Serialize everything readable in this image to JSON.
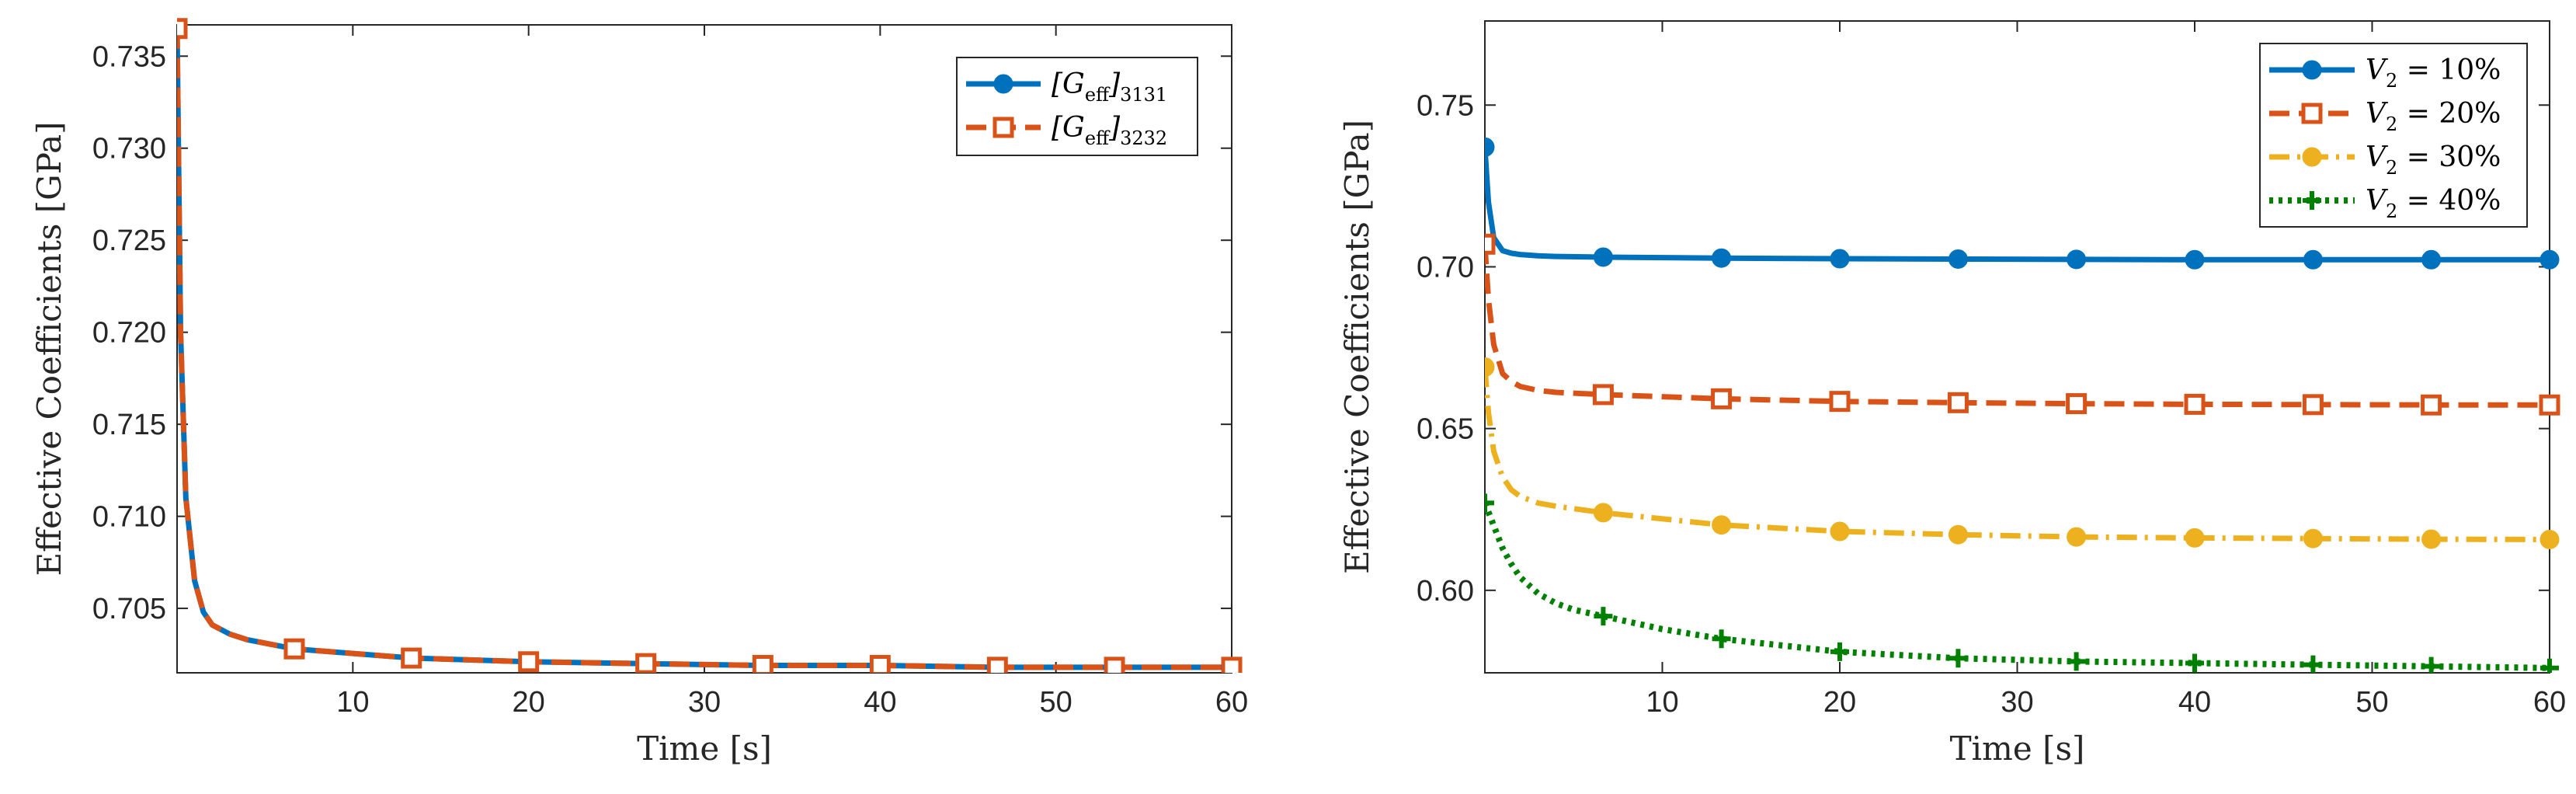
{
  "chart_data": [
    {
      "type": "line",
      "xlabel": "Time [s]",
      "ylabel": "Effective Coefficients [GPa]",
      "xlim": [
        0,
        60
      ],
      "ylim": [
        0.7015,
        0.7367
      ],
      "xticks": [
        10,
        20,
        30,
        40,
        50,
        60
      ],
      "xtick_labels": [
        "10",
        "20",
        "30",
        "40",
        "50",
        "60"
      ],
      "yticks": [
        0.705,
        0.71,
        0.715,
        0.72,
        0.725,
        0.73,
        0.735
      ],
      "ytick_labels": [
        "0.705",
        "0.710",
        "0.715",
        "0.720",
        "0.725",
        "0.730",
        "0.735"
      ],
      "grid": false,
      "legend_position": "top-right",
      "series": [
        {
          "name": "[G_eff]3131",
          "legend_main": "[G",
          "legend_sub1": "eff",
          "legend_close": "]",
          "legend_sub2": "3131",
          "color": "#0072BD",
          "line_style": "solid",
          "marker": "circle",
          "x": [
            0,
            0.2,
            0.5,
            1,
            1.5,
            2,
            3,
            4,
            6.67,
            13.33,
            20,
            26.67,
            33.33,
            40,
            46.67,
            53.33,
            60
          ],
          "y": [
            0.7365,
            0.72,
            0.711,
            0.7065,
            0.7048,
            0.7041,
            0.7036,
            0.7033,
            0.7028,
            0.7023,
            0.7021,
            0.702,
            0.7019,
            0.7019,
            0.7018,
            0.7018,
            0.7018
          ],
          "marker_x": [
            0,
            6.67,
            13.33,
            20,
            26.67,
            33.33,
            40,
            46.67,
            53.33,
            60
          ]
        },
        {
          "name": "[G_eff]3232",
          "legend_main": "[G",
          "legend_sub1": "eff",
          "legend_close": "]",
          "legend_sub2": "3232",
          "color": "#D95319",
          "line_style": "dashed",
          "marker": "square",
          "x": [
            0,
            0.2,
            0.5,
            1,
            1.5,
            2,
            3,
            4,
            6.67,
            13.33,
            20,
            26.67,
            33.33,
            40,
            46.67,
            53.33,
            60
          ],
          "y": [
            0.7365,
            0.72,
            0.711,
            0.7065,
            0.7048,
            0.7041,
            0.7036,
            0.7033,
            0.7028,
            0.7023,
            0.7021,
            0.702,
            0.7019,
            0.7019,
            0.7018,
            0.7018,
            0.7018
          ],
          "marker_x": [
            0,
            6.67,
            13.33,
            20,
            26.67,
            33.33,
            40,
            46.67,
            53.33,
            60
          ]
        }
      ]
    },
    {
      "type": "line",
      "xlabel": "Time [s]",
      "ylabel": "Effective Coefficients [GPa]",
      "xlim": [
        0,
        60
      ],
      "ylim": [
        0.5745,
        0.776
      ],
      "xticks": [
        10,
        20,
        30,
        40,
        50,
        60
      ],
      "xtick_labels": [
        "10",
        "20",
        "30",
        "40",
        "50",
        "60"
      ],
      "yticks": [
        0.6,
        0.65,
        0.7,
        0.75
      ],
      "ytick_labels": [
        "0.60",
        "0.65",
        "0.70",
        "0.75"
      ],
      "grid": false,
      "legend_position": "top-right",
      "series": [
        {
          "name": "V2 = 10%",
          "legend_main": "V",
          "legend_sub1": "2",
          "legend_rest": " = 10%",
          "color": "#0072BD",
          "line_style": "solid",
          "marker": "circle",
          "x": [
            0,
            0.2,
            0.5,
            1,
            1.5,
            2,
            3,
            4,
            6.67,
            13.33,
            20,
            26.67,
            33.33,
            40,
            46.67,
            53.33,
            60
          ],
          "y": [
            0.737,
            0.72,
            0.709,
            0.705,
            0.7042,
            0.7038,
            0.7034,
            0.7032,
            0.703,
            0.7027,
            0.7025,
            0.7024,
            0.7023,
            0.7022,
            0.7022,
            0.7022,
            0.7022
          ],
          "marker_x": [
            0,
            6.67,
            13.33,
            20,
            26.67,
            33.33,
            40,
            46.67,
            53.33,
            60
          ]
        },
        {
          "name": "V2 = 20%",
          "legend_main": "V",
          "legend_sub1": "2",
          "legend_rest": " = 20%",
          "color": "#D95319",
          "line_style": "dashed",
          "marker": "square",
          "x": [
            0,
            0.2,
            0.5,
            1,
            1.5,
            2,
            3,
            4,
            6.67,
            13.33,
            20,
            26.67,
            33.33,
            40,
            46.67,
            53.33,
            60
          ],
          "y": [
            0.707,
            0.69,
            0.676,
            0.667,
            0.6645,
            0.663,
            0.6618,
            0.6612,
            0.6605,
            0.6592,
            0.6584,
            0.658,
            0.6577,
            0.6575,
            0.6574,
            0.6573,
            0.6573
          ],
          "marker_x": [
            0,
            6.67,
            13.33,
            20,
            26.67,
            33.33,
            40,
            46.67,
            53.33,
            60
          ]
        },
        {
          "name": "V2 = 30%",
          "legend_main": "V",
          "legend_sub1": "2",
          "legend_rest": " = 30%",
          "color": "#EDB120",
          "line_style": "dashdot",
          "marker": "circle",
          "x": [
            0,
            0.2,
            0.5,
            1,
            1.5,
            2,
            3,
            4,
            6.67,
            13.33,
            20,
            26.67,
            33.33,
            40,
            46.67,
            53.33,
            60
          ],
          "y": [
            0.669,
            0.655,
            0.643,
            0.635,
            0.631,
            0.629,
            0.627,
            0.626,
            0.624,
            0.6202,
            0.6182,
            0.6172,
            0.6165,
            0.6162,
            0.616,
            0.6158,
            0.6157
          ],
          "marker_x": [
            0,
            6.67,
            13.33,
            20,
            26.67,
            33.33,
            40,
            46.67,
            53.33,
            60
          ]
        },
        {
          "name": "V2 = 40%",
          "legend_main": "V",
          "legend_sub1": "2",
          "legend_rest": " = 40%",
          "color": "#008000",
          "line_style": "dotted",
          "marker": "plus",
          "x": [
            0,
            0.5,
            1,
            1.5,
            2,
            3,
            4,
            5,
            6.67,
            10,
            13.33,
            20,
            26.67,
            33.33,
            40,
            46.67,
            53.33,
            60
          ],
          "y": [
            0.627,
            0.62,
            0.613,
            0.608,
            0.604,
            0.599,
            0.596,
            0.594,
            0.592,
            0.588,
            0.585,
            0.581,
            0.579,
            0.578,
            0.5775,
            0.577,
            0.5765,
            0.576
          ],
          "marker_x": [
            0,
            6.67,
            13.33,
            20,
            26.67,
            33.33,
            40,
            46.67,
            53.33,
            60
          ]
        }
      ]
    }
  ]
}
